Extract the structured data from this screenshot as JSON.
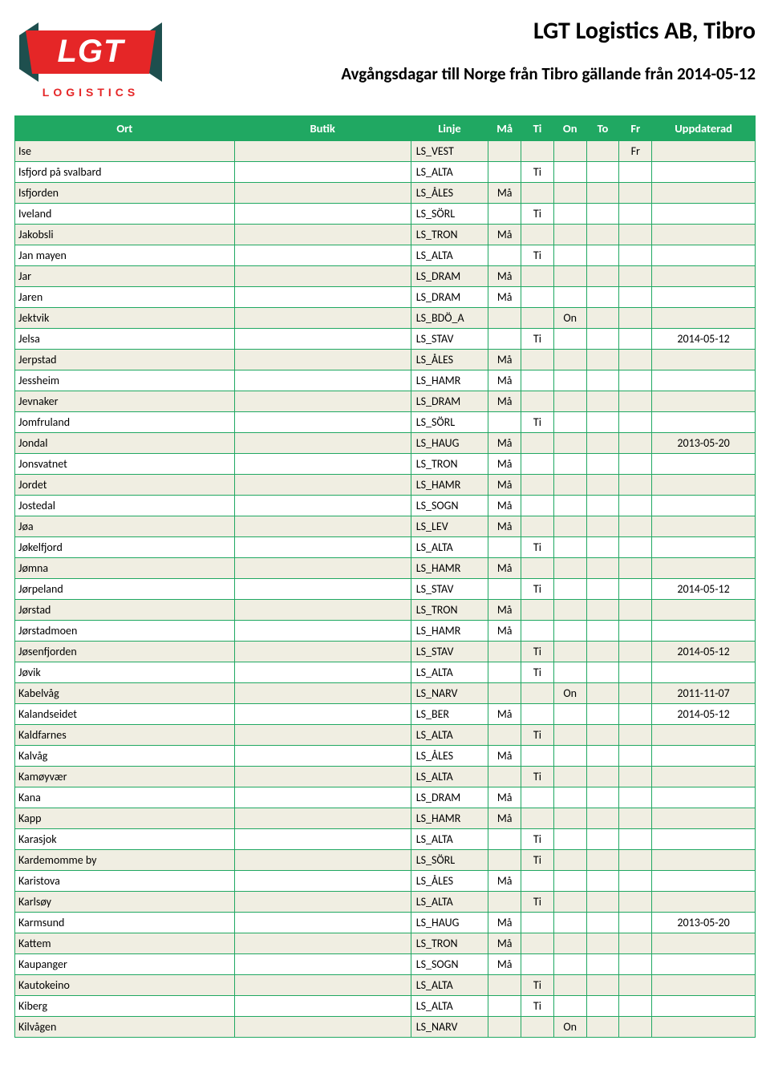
{
  "header": {
    "company": "LGT Logistics AB, Tibro",
    "subtitle": "Avgångsdagar till Norge från Tibro gällande från 2014-05-12",
    "logo": {
      "main_text": "LGT",
      "sub_text": "LOGISTICS",
      "slab_color": "#e52627",
      "tri_color": "#1e4f4e",
      "text_color": "#ffffff",
      "sub_color": "#e52627"
    }
  },
  "table": {
    "columns": {
      "ort": "Ort",
      "butik": "Butik",
      "linje": "Linje",
      "ma": "Må",
      "ti": "Ti",
      "on": "On",
      "to": "To",
      "fr": "Fr",
      "uppdaterad": "Uppdaterad"
    },
    "rows": [
      {
        "ort": "Ise",
        "butik": "",
        "linje": "LS_VEST",
        "ma": "",
        "ti": "",
        "on": "",
        "to": "",
        "fr": "Fr",
        "upd": ""
      },
      {
        "ort": "Isfjord på svalbard",
        "butik": "",
        "linje": "LS_ALTA",
        "ma": "",
        "ti": "Ti",
        "on": "",
        "to": "",
        "fr": "",
        "upd": ""
      },
      {
        "ort": "Isfjorden",
        "butik": "",
        "linje": "LS_ÅLES",
        "ma": "Må",
        "ti": "",
        "on": "",
        "to": "",
        "fr": "",
        "upd": ""
      },
      {
        "ort": "Iveland",
        "butik": "",
        "linje": "LS_SÖRL",
        "ma": "",
        "ti": "Ti",
        "on": "",
        "to": "",
        "fr": "",
        "upd": ""
      },
      {
        "ort": "Jakobsli",
        "butik": "",
        "linje": "LS_TRON",
        "ma": "Må",
        "ti": "",
        "on": "",
        "to": "",
        "fr": "",
        "upd": ""
      },
      {
        "ort": "Jan mayen",
        "butik": "",
        "linje": "LS_ALTA",
        "ma": "",
        "ti": "Ti",
        "on": "",
        "to": "",
        "fr": "",
        "upd": ""
      },
      {
        "ort": "Jar",
        "butik": "",
        "linje": "LS_DRAM",
        "ma": "Må",
        "ti": "",
        "on": "",
        "to": "",
        "fr": "",
        "upd": ""
      },
      {
        "ort": "Jaren",
        "butik": "",
        "linje": "LS_DRAM",
        "ma": "Må",
        "ti": "",
        "on": "",
        "to": "",
        "fr": "",
        "upd": ""
      },
      {
        "ort": "Jektvik",
        "butik": "",
        "linje": "LS_BDÖ_A",
        "ma": "",
        "ti": "",
        "on": "On",
        "to": "",
        "fr": "",
        "upd": ""
      },
      {
        "ort": "Jelsa",
        "butik": "",
        "linje": "LS_STAV",
        "ma": "",
        "ti": "Ti",
        "on": "",
        "to": "",
        "fr": "",
        "upd": "2014-05-12"
      },
      {
        "ort": "Jerpstad",
        "butik": "",
        "linje": "LS_ÅLES",
        "ma": "Må",
        "ti": "",
        "on": "",
        "to": "",
        "fr": "",
        "upd": ""
      },
      {
        "ort": "Jessheim",
        "butik": "",
        "linje": "LS_HAMR",
        "ma": "Må",
        "ti": "",
        "on": "",
        "to": "",
        "fr": "",
        "upd": ""
      },
      {
        "ort": "Jevnaker",
        "butik": "",
        "linje": "LS_DRAM",
        "ma": "Må",
        "ti": "",
        "on": "",
        "to": "",
        "fr": "",
        "upd": ""
      },
      {
        "ort": "Jomfruland",
        "butik": "",
        "linje": "LS_SÖRL",
        "ma": "",
        "ti": "Ti",
        "on": "",
        "to": "",
        "fr": "",
        "upd": ""
      },
      {
        "ort": "Jondal",
        "butik": "",
        "linje": "LS_HAUG",
        "ma": "Må",
        "ti": "",
        "on": "",
        "to": "",
        "fr": "",
        "upd": "2013-05-20"
      },
      {
        "ort": "Jonsvatnet",
        "butik": "",
        "linje": "LS_TRON",
        "ma": "Må",
        "ti": "",
        "on": "",
        "to": "",
        "fr": "",
        "upd": ""
      },
      {
        "ort": "Jordet",
        "butik": "",
        "linje": "LS_HAMR",
        "ma": "Må",
        "ti": "",
        "on": "",
        "to": "",
        "fr": "",
        "upd": ""
      },
      {
        "ort": "Jostedal",
        "butik": "",
        "linje": "LS_SOGN",
        "ma": "Må",
        "ti": "",
        "on": "",
        "to": "",
        "fr": "",
        "upd": ""
      },
      {
        "ort": "Jøa",
        "butik": "",
        "linje": "LS_LEV",
        "ma": "Må",
        "ti": "",
        "on": "",
        "to": "",
        "fr": "",
        "upd": ""
      },
      {
        "ort": "Jøkelfjord",
        "butik": "",
        "linje": "LS_ALTA",
        "ma": "",
        "ti": "Ti",
        "on": "",
        "to": "",
        "fr": "",
        "upd": ""
      },
      {
        "ort": "Jømna",
        "butik": "",
        "linje": "LS_HAMR",
        "ma": "Må",
        "ti": "",
        "on": "",
        "to": "",
        "fr": "",
        "upd": ""
      },
      {
        "ort": "Jørpeland",
        "butik": "",
        "linje": "LS_STAV",
        "ma": "",
        "ti": "Ti",
        "on": "",
        "to": "",
        "fr": "",
        "upd": "2014-05-12"
      },
      {
        "ort": "Jørstad",
        "butik": "",
        "linje": "LS_TRON",
        "ma": "Må",
        "ti": "",
        "on": "",
        "to": "",
        "fr": "",
        "upd": ""
      },
      {
        "ort": "Jørstadmoen",
        "butik": "",
        "linje": "LS_HAMR",
        "ma": "Må",
        "ti": "",
        "on": "",
        "to": "",
        "fr": "",
        "upd": ""
      },
      {
        "ort": "Jøsenfjorden",
        "butik": "",
        "linje": "LS_STAV",
        "ma": "",
        "ti": "Ti",
        "on": "",
        "to": "",
        "fr": "",
        "upd": "2014-05-12"
      },
      {
        "ort": "Jøvik",
        "butik": "",
        "linje": "LS_ALTA",
        "ma": "",
        "ti": "Ti",
        "on": "",
        "to": "",
        "fr": "",
        "upd": ""
      },
      {
        "ort": "Kabelvåg",
        "butik": "",
        "linje": "LS_NARV",
        "ma": "",
        "ti": "",
        "on": "On",
        "to": "",
        "fr": "",
        "upd": "2011-11-07"
      },
      {
        "ort": "Kalandseidet",
        "butik": "",
        "linje": "LS_BER",
        "ma": "Må",
        "ti": "",
        "on": "",
        "to": "",
        "fr": "",
        "upd": "2014-05-12"
      },
      {
        "ort": "Kaldfarnes",
        "butik": "",
        "linje": "LS_ALTA",
        "ma": "",
        "ti": "Ti",
        "on": "",
        "to": "",
        "fr": "",
        "upd": ""
      },
      {
        "ort": "Kalvåg",
        "butik": "",
        "linje": "LS_ÅLES",
        "ma": "Må",
        "ti": "",
        "on": "",
        "to": "",
        "fr": "",
        "upd": ""
      },
      {
        "ort": "Kamøyvær",
        "butik": "",
        "linje": "LS_ALTA",
        "ma": "",
        "ti": "Ti",
        "on": "",
        "to": "",
        "fr": "",
        "upd": ""
      },
      {
        "ort": "Kana",
        "butik": "",
        "linje": "LS_DRAM",
        "ma": "Må",
        "ti": "",
        "on": "",
        "to": "",
        "fr": "",
        "upd": ""
      },
      {
        "ort": "Kapp",
        "butik": "",
        "linje": "LS_HAMR",
        "ma": "Må",
        "ti": "",
        "on": "",
        "to": "",
        "fr": "",
        "upd": ""
      },
      {
        "ort": "Karasjok",
        "butik": "",
        "linje": "LS_ALTA",
        "ma": "",
        "ti": "Ti",
        "on": "",
        "to": "",
        "fr": "",
        "upd": ""
      },
      {
        "ort": "Kardemomme by",
        "butik": "",
        "linje": "LS_SÖRL",
        "ma": "",
        "ti": "Ti",
        "on": "",
        "to": "",
        "fr": "",
        "upd": ""
      },
      {
        "ort": "Karistova",
        "butik": "",
        "linje": "LS_ÅLES",
        "ma": "Må",
        "ti": "",
        "on": "",
        "to": "",
        "fr": "",
        "upd": ""
      },
      {
        "ort": "Karlsøy",
        "butik": "",
        "linje": "LS_ALTA",
        "ma": "",
        "ti": "Ti",
        "on": "",
        "to": "",
        "fr": "",
        "upd": ""
      },
      {
        "ort": "Karmsund",
        "butik": "",
        "linje": "LS_HAUG",
        "ma": "Må",
        "ti": "",
        "on": "",
        "to": "",
        "fr": "",
        "upd": "2013-05-20"
      },
      {
        "ort": "Kattem",
        "butik": "",
        "linje": "LS_TRON",
        "ma": "Må",
        "ti": "",
        "on": "",
        "to": "",
        "fr": "",
        "upd": ""
      },
      {
        "ort": "Kaupanger",
        "butik": "",
        "linje": "LS_SOGN",
        "ma": "Må",
        "ti": "",
        "on": "",
        "to": "",
        "fr": "",
        "upd": ""
      },
      {
        "ort": "Kautokeino",
        "butik": "",
        "linje": "LS_ALTA",
        "ma": "",
        "ti": "Ti",
        "on": "",
        "to": "",
        "fr": "",
        "upd": ""
      },
      {
        "ort": "Kiberg",
        "butik": "",
        "linje": "LS_ALTA",
        "ma": "",
        "ti": "Ti",
        "on": "",
        "to": "",
        "fr": "",
        "upd": ""
      },
      {
        "ort": "Kilvågen",
        "butik": "",
        "linje": "LS_NARV",
        "ma": "",
        "ti": "",
        "on": "On",
        "to": "",
        "fr": "",
        "upd": ""
      }
    ]
  },
  "style": {
    "header_bg": "#20a862",
    "header_fg": "#ffffff",
    "row_odd_bg": "#f0eee2",
    "row_even_bg": "#ffffff",
    "border_color": "#20a862",
    "font_family": "Calibri, Arial, sans-serif"
  }
}
